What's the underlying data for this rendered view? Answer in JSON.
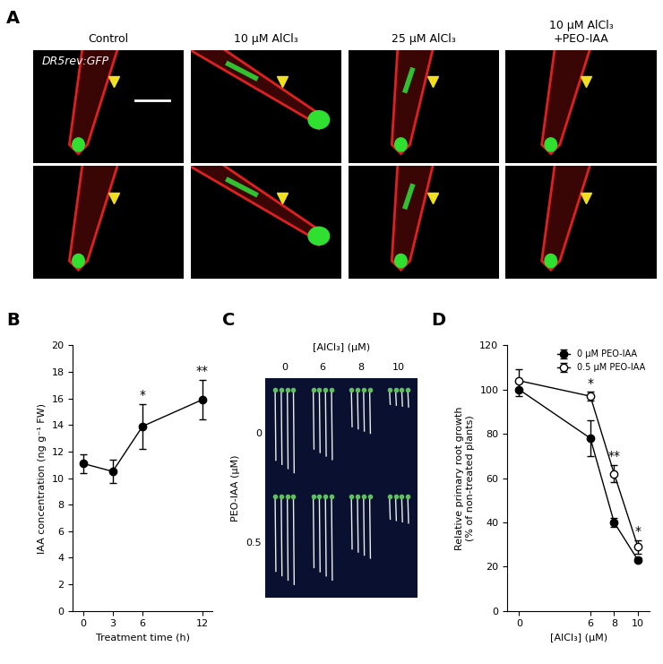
{
  "image_panels": [
    {
      "panel": "A",
      "stain": "DR5rev:GFP",
      "column_titles": [
        "Control",
        "10 μM AlCl₃",
        "25 μM AlCl₃",
        "10 μM AlCl₃\n+PEO-IAA"
      ]
    },
    {
      "panel": "C",
      "column_header": "[AlCl₃] (μM)",
      "columns": [
        "0",
        "6",
        "8",
        "10"
      ],
      "row_header": "PEO-IAA (μM)",
      "rows": [
        "0",
        "0.5"
      ]
    }
  ],
  "chart_data": [
    {
      "panel": "B",
      "type": "line",
      "x": [
        0,
        3,
        6,
        12
      ],
      "values": [
        11.1,
        10.5,
        13.9,
        15.9
      ],
      "errors": [
        0.7,
        0.9,
        1.7,
        1.5
      ],
      "color": "#000000",
      "marker": "filled_circle",
      "x_label": "Treatment time (h)",
      "y_label": "IAA concentration (ng g⁻¹ FW)",
      "xlim": [
        -1,
        13
      ],
      "xticks": [
        0,
        3,
        6,
        12
      ],
      "ylim": [
        0,
        20
      ],
      "yticks": [
        0,
        2,
        4,
        6,
        8,
        10,
        12,
        14,
        16,
        18,
        20
      ],
      "annotations": [
        {
          "x": 6,
          "text": "*"
        },
        {
          "x": 12,
          "text": "**"
        }
      ]
    },
    {
      "panel": "D",
      "type": "line",
      "x": [
        0,
        6,
        8,
        10
      ],
      "series": [
        {
          "name": "0 μM PEO-IAA",
          "color": "#000000",
          "marker": "filled_circle",
          "values": [
            100,
            78,
            40,
            23
          ],
          "errors": [
            3,
            8,
            2,
            1
          ]
        },
        {
          "name": "0.5 μM PEO-IAA",
          "color": "#000000",
          "marker": "open_circle",
          "values": [
            104,
            97,
            62,
            29
          ],
          "errors": [
            5,
            2,
            4,
            3
          ]
        }
      ],
      "x_label": "[AlCl₃] (μM)",
      "y_label": "Relative primary root growth\n(% of non-treated plants)",
      "xlim": [
        -1,
        11
      ],
      "xticks": [
        0,
        6,
        8,
        10
      ],
      "ylim": [
        0,
        120
      ],
      "yticks": [
        0,
        20,
        40,
        60,
        80,
        100,
        120
      ],
      "legend": "upper right",
      "annotations": [
        {
          "x": 6,
          "text": "*"
        },
        {
          "x": 8,
          "text": "**"
        },
        {
          "x": 10,
          "text": "*"
        }
      ]
    }
  ]
}
